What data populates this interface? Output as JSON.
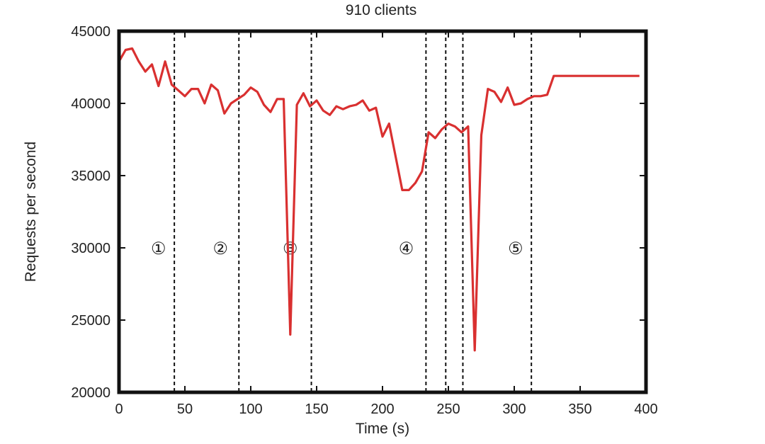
{
  "chart_data": {
    "type": "line",
    "title": "910 clients",
    "xlabel": "Time (s)",
    "ylabel": "Requests per second",
    "xlim": [
      0,
      400
    ],
    "ylim": [
      20000,
      45000
    ],
    "xticks": [
      0,
      50,
      100,
      150,
      200,
      250,
      300,
      350,
      400
    ],
    "xtick_labels": [
      "0",
      "50",
      "100",
      "150",
      "200",
      "250",
      "300",
      "350",
      "400"
    ],
    "yticks": [
      20000,
      25000,
      30000,
      35000,
      40000,
      45000
    ],
    "ytick_labels": [
      "20000",
      "25000",
      "30000",
      "35000",
      "40000",
      "45000"
    ],
    "grid": false,
    "legend": "none",
    "line_color": "#d93030",
    "series": [
      {
        "x": [
          0,
          5,
          10,
          15,
          20,
          25,
          30,
          35,
          40,
          45,
          50,
          55,
          60,
          65,
          70,
          75,
          80,
          85,
          90,
          95,
          100,
          105,
          110,
          115,
          120,
          125,
          130,
          135,
          140,
          145,
          150,
          155,
          160,
          165,
          170,
          175,
          180,
          185,
          190,
          195,
          200,
          205,
          210,
          215,
          220,
          225,
          230,
          235,
          240,
          245,
          250,
          255,
          260,
          265,
          270,
          275,
          280,
          285,
          290,
          295,
          300,
          305,
          310,
          315,
          320,
          325,
          330,
          335,
          340,
          345,
          350,
          355,
          360,
          365,
          370,
          375,
          380,
          385,
          390,
          395
        ],
        "values": [
          42900,
          43700,
          43800,
          42900,
          42200,
          42700,
          41200,
          42900,
          41300,
          40900,
          40500,
          41000,
          41000,
          40000,
          41300,
          40900,
          39300,
          40000,
          40300,
          40600,
          41100,
          40800,
          39900,
          39400,
          40300,
          40300,
          24000,
          39900,
          40700,
          39800,
          40200,
          39500,
          39200,
          39800,
          39600,
          39800,
          39900,
          40200,
          39500,
          39700,
          37700,
          38600,
          36300,
          34000,
          34000,
          34500,
          35300,
          38000,
          37600,
          38200,
          38600,
          38400,
          38000,
          38400,
          22900,
          37800,
          41000,
          40800,
          40100,
          41100,
          39900,
          40000,
          40300,
          40500,
          40500,
          40600,
          41900,
          41900,
          41900,
          41900,
          41900,
          41900,
          41900,
          41900,
          41900,
          41900,
          41900,
          41900,
          41900,
          41900
        ]
      }
    ],
    "phase_boundaries": [
      42,
      91,
      146,
      233,
      248,
      261,
      313
    ],
    "region_labels": [
      {
        "text": "①",
        "x": 30
      },
      {
        "text": "②",
        "x": 77
      },
      {
        "text": "③",
        "x": 130
      },
      {
        "text": "④",
        "x": 218
      },
      {
        "text": "⑤",
        "x": 301
      }
    ],
    "region_label_y": 30000
  }
}
